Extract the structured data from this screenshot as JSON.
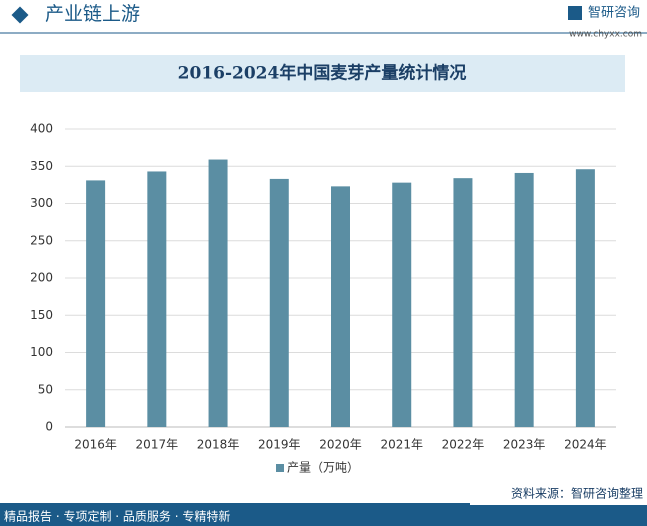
{
  "header": {
    "title": "产业链上游",
    "brand": "智研咨询",
    "url": "www.chyxx.com"
  },
  "chart_data": {
    "type": "bar",
    "title": "2016-2024年中国麦芽产量统计情况",
    "categories": [
      "2016年",
      "2017年",
      "2018年",
      "2019年",
      "2020年",
      "2021年",
      "2022年",
      "2023年",
      "2024年"
    ],
    "series": [
      {
        "name": "产量（万吨）",
        "color": "#5b8ea3",
        "values": [
          331,
          343,
          359,
          333,
          323,
          328,
          334,
          341,
          346
        ]
      }
    ],
    "ylim": [
      0,
      400
    ],
    "yticks": [
      0,
      50,
      100,
      150,
      200,
      250,
      300,
      350,
      400
    ],
    "grid": true,
    "legend": "bottom"
  },
  "footer": {
    "tagline": "精品报告 · 专项定制 · 品质服务 · 专精特新",
    "source": "资料来源：智研咨询整理"
  }
}
